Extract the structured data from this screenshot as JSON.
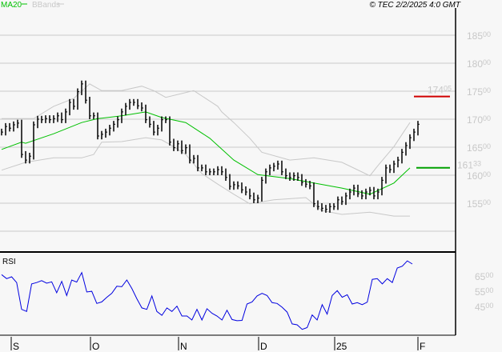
{
  "header": {
    "legend": [
      {
        "label": "MA20",
        "color": "#00c000"
      },
      {
        "label": "BBands",
        "color": "#c8c8c8"
      }
    ],
    "copyright": "© TEC 2/2/2025 4:0 GMT"
  },
  "colors": {
    "background": "#f7f7f7",
    "grid": "#c8c8c8",
    "bars": "#000000",
    "ma": "#00c000",
    "bands": "#c8c8c8",
    "rsi": "#0000e0",
    "resistance": "#d00000",
    "ma_marker": "#00a000"
  },
  "chart_data": [
    {
      "type": "line",
      "title": "",
      "subtype": "ohlc-bars-with-ma20-bbands",
      "ylim": [
        147.5,
        189
      ],
      "y_ticks": [
        {
          "int": "185",
          "dec": "00",
          "v": 185
        },
        {
          "int": "180",
          "dec": "00",
          "v": 180
        },
        {
          "int": "175",
          "dec": "00",
          "v": 175
        },
        {
          "int": "170",
          "dec": "00",
          "v": 170
        },
        {
          "int": "165",
          "dec": "00",
          "v": 165
        },
        {
          "int": "160",
          "dec": "00",
          "v": 160
        },
        {
          "int": "155",
          "dec": "00",
          "v": 155
        },
        {
          "int": "",
          "dec": "",
          "v": 150
        }
      ],
      "x_ticks": [
        {
          "label": "S",
          "bar": 2
        },
        {
          "label": "O",
          "bar": 21.8
        },
        {
          "label": "N",
          "bar": 43.8
        },
        {
          "label": "D",
          "bar": 63.8
        },
        {
          "label": "25",
          "bar": 82.8
        },
        {
          "label": "F",
          "bar": 103.6
        }
      ],
      "closes": [
        167.7,
        168.7,
        168.4,
        169,
        169.3,
        163.7,
        162.7,
        163.4,
        169,
        170,
        169.9,
        170.1,
        169.9,
        170.1,
        170.6,
        169.9,
        171.3,
        173,
        172.3,
        174.9,
        176.3,
        173.4,
        170.6,
        170.6,
        167,
        167.3,
        167.7,
        168.4,
        169.1,
        169.9,
        171.3,
        172.3,
        173,
        173,
        172.4,
        172,
        169.9,
        169.1,
        167.7,
        168.4,
        169.9,
        169.9,
        165.9,
        164.9,
        165.6,
        164.4,
        164.9,
        162.7,
        163,
        161.3,
        161.3,
        160.6,
        160.6,
        160.6,
        161,
        160.6,
        159.6,
        158,
        158.3,
        158.1,
        157.4,
        157,
        156.3,
        155.6,
        155.9,
        159.1,
        160.6,
        161.3,
        161.6,
        162,
        160.6,
        159.9,
        159.6,
        159.9,
        159.6,
        158.7,
        158.4,
        158.1,
        154.9,
        154.4,
        154.1,
        153.9,
        154.4,
        154.4,
        155.6,
        155.3,
        156.3,
        157,
        157.7,
        156.7,
        156.3,
        157,
        157.3,
        156.3,
        157,
        159.1,
        161.3,
        161,
        162,
        162.7,
        164.1,
        165.3,
        166.7,
        167.7,
        169.1
      ],
      "ma20": [
        [
          0,
          164.6
        ],
        [
          5,
          165.9
        ],
        [
          6,
          165.7
        ],
        [
          13,
          167.4
        ],
        [
          20,
          169.4
        ],
        [
          24,
          170.1
        ],
        [
          30,
          170.6
        ],
        [
          36,
          171.3
        ],
        [
          40,
          170.3
        ],
        [
          46,
          169.4
        ],
        [
          52,
          166.6
        ],
        [
          54,
          165.3
        ],
        [
          58,
          162.7
        ],
        [
          64,
          160.1
        ],
        [
          72,
          159.4
        ],
        [
          78,
          158.6
        ],
        [
          85,
          157.7
        ],
        [
          92,
          156.6
        ],
        [
          98,
          158.6
        ],
        [
          102,
          161.3
        ]
      ],
      "bband_upper": [
        [
          0,
          170.1
        ],
        [
          8,
          170.1
        ],
        [
          13,
          172.3
        ],
        [
          18,
          173.7
        ],
        [
          22,
          176.3
        ],
        [
          25,
          175.1
        ],
        [
          30,
          175.1
        ],
        [
          35,
          175.9
        ],
        [
          38,
          175.1
        ],
        [
          41,
          173.9
        ],
        [
          48,
          175.1
        ],
        [
          54,
          172.3
        ],
        [
          55,
          171.3
        ],
        [
          58,
          169.4
        ],
        [
          62,
          166.6
        ],
        [
          65,
          164.1
        ],
        [
          72,
          162.7
        ],
        [
          78,
          163.1
        ],
        [
          85,
          162.3
        ],
        [
          92,
          159.9
        ],
        [
          94,
          161.7
        ],
        [
          98,
          165.1
        ],
        [
          102,
          169.4
        ]
      ],
      "bband_lower": [
        [
          0,
          160.9
        ],
        [
          6,
          162.3
        ],
        [
          13,
          163.1
        ],
        [
          20,
          163.1
        ],
        [
          23,
          163.7
        ],
        [
          25,
          165.9
        ],
        [
          30,
          166
        ],
        [
          36,
          166.7
        ],
        [
          40,
          166.3
        ],
        [
          43,
          165.1
        ],
        [
          46,
          163.7
        ],
        [
          50,
          160.3
        ],
        [
          54,
          158.4
        ],
        [
          58,
          156.6
        ],
        [
          62,
          154.9
        ],
        [
          68,
          155.6
        ],
        [
          76,
          156
        ],
        [
          80,
          153.7
        ],
        [
          85,
          153
        ],
        [
          92,
          153.4
        ],
        [
          98,
          152.7
        ],
        [
          102,
          152.7
        ]
      ],
      "resistance": {
        "value": 174.05,
        "label_int": "174",
        "label_dec": "05"
      },
      "ma_last": {
        "value": 161.33,
        "label_int": "161",
        "label_dec": "33"
      }
    },
    {
      "type": "line",
      "title": "RSI",
      "ylim": [
        23,
        82
      ],
      "y_ticks": [
        {
          "int": "65",
          "dec": "00",
          "v": 65
        },
        {
          "int": "55",
          "dec": "00",
          "v": 55
        },
        {
          "int": "45",
          "dec": "00",
          "v": 45
        }
      ],
      "values": [
        66.4,
        63.8,
        65,
        61.2,
        43.6,
        42.2,
        60.3,
        61.2,
        62.5,
        60.8,
        61.7,
        54.5,
        62,
        52.7,
        62.9,
        61.5,
        67.8,
        55,
        55.5,
        47.5,
        48.5,
        51.5,
        54.1,
        58.8,
        58.5,
        62.9,
        57.3,
        50.6,
        44.5,
        43.6,
        52.4,
        42.2,
        39.7,
        44.5,
        42.2,
        45.7,
        39.2,
        39.2,
        36.6,
        43.6,
        36.6,
        44,
        41,
        39.2,
        36.6,
        43,
        36.9,
        36.1,
        36.3,
        47.1,
        48.5,
        52.4,
        54.1,
        52.7,
        48,
        47.5,
        45,
        41.8,
        34,
        33.4,
        30.4,
        31.6,
        39.9,
        36.6,
        46.7,
        40.5,
        52.7,
        55.9,
        51.5,
        53.2,
        47.1,
        48,
        46.7,
        48.3,
        63.3,
        63.8,
        60.3,
        63.8,
        61.2,
        70.8,
        72,
        75.5,
        73.4
      ]
    }
  ]
}
